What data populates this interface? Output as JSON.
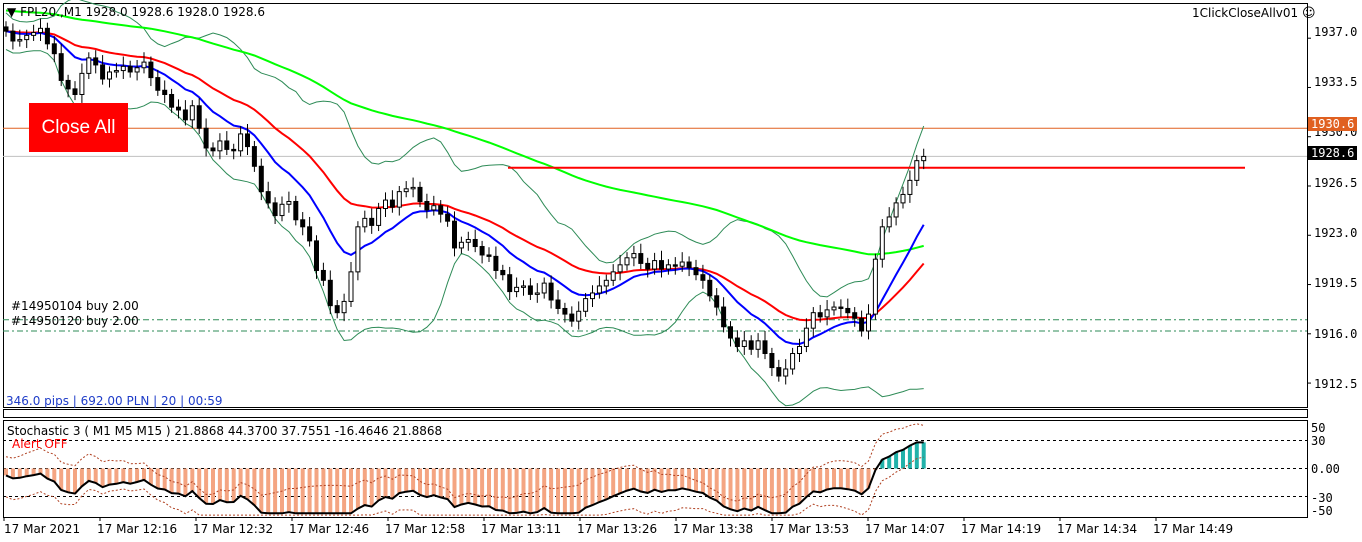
{
  "header": {
    "symbol_line": "FPL20.,M1  1928.0 1928.6 1928.0 1928.6",
    "ea_name": "1ClickCloseAllv01",
    "smiley": "☺"
  },
  "close_all_button": {
    "label": "Close All"
  },
  "orders": [
    {
      "label": "#14950104 buy 2.00",
      "price": 1917.0
    },
    {
      "label": "#14950120 buy 2.00",
      "price": 1916.2
    }
  ],
  "pips_info": "346.0 pips | 692.00 PLN | 20  | 00:59",
  "price_scale": {
    "ticks": [
      "1937.0",
      "1933.5",
      "1930.0",
      "1926.5",
      "1923.0",
      "1919.5",
      "1916.0",
      "1912.5"
    ],
    "ask_label": "1930.6",
    "bid_label": "1928.6"
  },
  "indicator": {
    "title": "Stochastic 3 ( M1  M5  M15 ) 21.8868 44.3700 37.7551 -16.4646 21.8868",
    "alert": "Alert OFF",
    "scale": [
      "50",
      "30",
      "0.00",
      "-30",
      "-50"
    ]
  },
  "time_axis": [
    "17 Mar 2021",
    "17 Mar 12:16",
    "17 Mar 12:32",
    "17 Mar 12:46",
    "17 Mar 12:58",
    "17 Mar 13:11",
    "17 Mar 13:26",
    "17 Mar 13:38",
    "17 Mar 13:53",
    "17 Mar 14:07",
    "17 Mar 14:19",
    "17 Mar 14:34",
    "17 Mar 14:49"
  ],
  "colors": {
    "bull_bear": "#000000",
    "ma_fast": "#0000ff",
    "ma_mid": "#ff0000",
    "ma_slow": "#00ff00",
    "bands": "#2e8b57",
    "hist_neg": "#f4a582",
    "hist_pos": "#20b2aa",
    "ask_line": "#e06020"
  },
  "chart_data": {
    "type": "candlestick",
    "timeframe": "M1",
    "ask": 1930.6,
    "bid": 1928.6,
    "resistance": 1927.8,
    "candles_close": [
      1937.5,
      1936.8,
      1936.9,
      1937.2,
      1937.4,
      1937.7,
      1936.6,
      1935.9,
      1934.0,
      1933.4,
      1933.0,
      1934.5,
      1935.6,
      1935.1,
      1934.1,
      1934.6,
      1934.7,
      1935.0,
      1934.6,
      1934.9,
      1935.3,
      1934.2,
      1933.3,
      1933.0,
      1932.1,
      1931.9,
      1931.2,
      1932.2,
      1930.6,
      1929.2,
      1929.0,
      1929.7,
      1929.1,
      1929.0,
      1930.2,
      1929.3,
      1927.9,
      1926.1,
      1925.3,
      1924.4,
      1925.2,
      1925.4,
      1924.1,
      1923.6,
      1922.6,
      1920.5,
      1919.8,
      1918.0,
      1917.5,
      1918.3,
      1920.4,
      1923.6,
      1924.2,
      1923.7,
      1924.9,
      1925.5,
      1925.0,
      1926.1,
      1926.3,
      1926.4,
      1925.4,
      1924.8,
      1925.1,
      1924.5,
      1924.0,
      1922.1,
      1922.5,
      1922.7,
      1922.2,
      1921.6,
      1921.5,
      1920.5,
      1920.2,
      1919.0,
      1919.3,
      1919.4,
      1918.8,
      1918.9,
      1919.6,
      1918.4,
      1917.8,
      1917.4,
      1916.9,
      1917.6,
      1918.5,
      1918.9,
      1919.4,
      1919.8,
      1920.4,
      1920.9,
      1921.4,
      1921.7,
      1921.0,
      1920.6,
      1921.2,
      1920.6,
      1920.9,
      1920.8,
      1921.1,
      1920.7,
      1920.2,
      1919.8,
      1918.7,
      1917.9,
      1916.5,
      1915.7,
      1915.1,
      1915.5,
      1914.9,
      1915.5,
      1914.6,
      1913.6,
      1913.0,
      1913.5,
      1914.6,
      1915.1,
      1916.4,
      1917.5,
      1917.2,
      1917.7,
      1917.9,
      1917.8,
      1917.5,
      1917.1,
      1916.2,
      1917.4,
      1921.3,
      1923.6,
      1924.3,
      1925.3,
      1925.9,
      1926.9,
      1928.3,
      1928.6
    ]
  }
}
